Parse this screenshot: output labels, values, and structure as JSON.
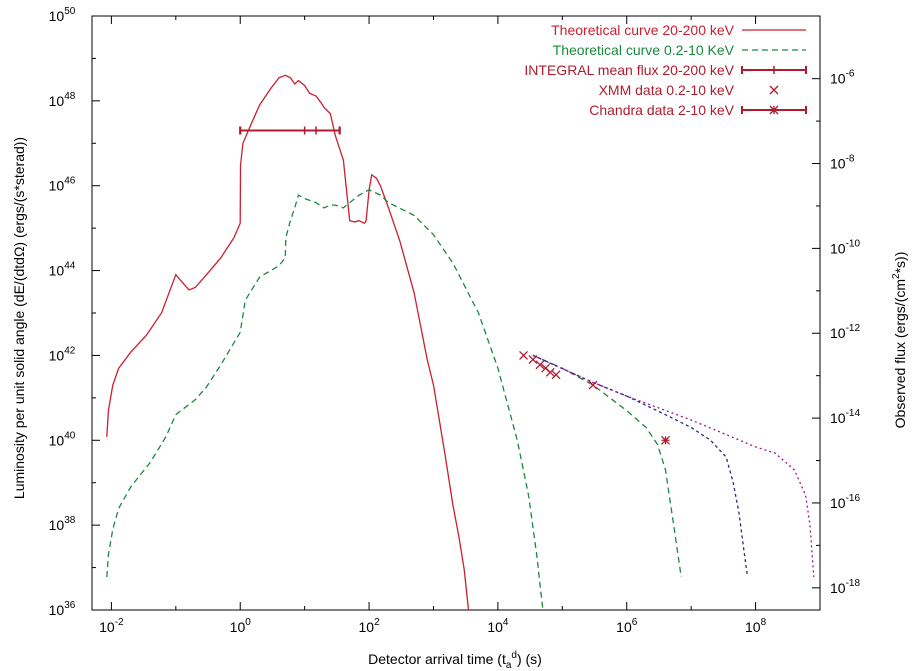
{
  "chart_data": {
    "type": "line",
    "x_axis": {
      "label": "Detector arrival time (t",
      "label_sub": "a",
      "label_sup": "d",
      "label_tail": ") (s)",
      "scale": "log",
      "range": [
        0.005,
        1000000000.0
      ],
      "ticks": [
        {
          "value": 0.01,
          "base": "10",
          "exp": "-2"
        },
        {
          "value": 1,
          "base": "10",
          "exp": "0"
        },
        {
          "value": 100,
          "base": "10",
          "exp": "2"
        },
        {
          "value": 10000,
          "base": "10",
          "exp": "4"
        },
        {
          "value": 1000000,
          "base": "10",
          "exp": "6"
        },
        {
          "value": 100000000,
          "base": "10",
          "exp": "8"
        }
      ]
    },
    "y_axis_left": {
      "label": "Luminosity per unit solid angle (dE/(dtdΩ) (ergs/(s*sterad))",
      "scale": "log",
      "range": [
        1e+36,
        1e+50
      ],
      "ticks": [
        {
          "value": 1e+36,
          "base": "10",
          "exp": "36"
        },
        {
          "value": 1e+38,
          "base": "10",
          "exp": "38"
        },
        {
          "value": 1e+40,
          "base": "10",
          "exp": "40"
        },
        {
          "value": 1e+42,
          "base": "10",
          "exp": "42"
        },
        {
          "value": 1e+44,
          "base": "10",
          "exp": "44"
        },
        {
          "value": 1e+46,
          "base": "10",
          "exp": "46"
        },
        {
          "value": 1e+48,
          "base": "10",
          "exp": "48"
        },
        {
          "value": 1e+50,
          "base": "10",
          "exp": "50"
        }
      ]
    },
    "y_axis_right": {
      "label_pre": "Observed flux (ergs/(cm",
      "label_sup": "2",
      "label_post": "*s))",
      "scale": "log",
      "range": [
        3e-19,
        3e-05
      ],
      "ticks": [
        {
          "value": 1e-18,
          "base": "10",
          "exp": "-18"
        },
        {
          "value": 1e-16,
          "base": "10",
          "exp": "-16"
        },
        {
          "value": 1e-14,
          "base": "10",
          "exp": "-14"
        },
        {
          "value": 1e-12,
          "base": "10",
          "exp": "-12"
        },
        {
          "value": 1e-10,
          "base": "10",
          "exp": "-10"
        },
        {
          "value": 1e-08,
          "base": "10",
          "exp": "-8"
        },
        {
          "value": 1e-06,
          "base": "10",
          "exp": "-6"
        }
      ]
    },
    "legend_position": "top-right",
    "series": [
      {
        "name": "Theoretical curve 20-200 keV",
        "kind": "line",
        "color": "#cc1f2f",
        "dash": "",
        "points": [
          [
            0.0085,
            1.2e+40
          ],
          [
            0.009,
            5e+40
          ],
          [
            0.0105,
            2e+41
          ],
          [
            0.013,
            5e+41
          ],
          [
            0.02,
            1.2e+42
          ],
          [
            0.035,
            3e+42
          ],
          [
            0.06,
            1e+43
          ],
          [
            0.1,
            8e+43
          ],
          [
            0.13,
            5e+43
          ],
          [
            0.16,
            3.5e+43
          ],
          [
            0.2,
            4e+43
          ],
          [
            0.3,
            8e+43
          ],
          [
            0.5,
            2e+44
          ],
          [
            0.8,
            6e+44
          ],
          [
            1.0,
            1.3e+45
          ],
          [
            1.01,
            3e+46
          ],
          [
            1.1,
            1e+47
          ],
          [
            1.5,
            3e+47
          ],
          [
            2,
            8e+47
          ],
          [
            3,
            2e+48
          ],
          [
            4,
            3.5e+48
          ],
          [
            5,
            4e+48
          ],
          [
            6,
            3.5e+48
          ],
          [
            7,
            2.5e+48
          ],
          [
            8,
            3e+48
          ],
          [
            10,
            2.3e+48
          ],
          [
            12,
            1.5e+48
          ],
          [
            15,
            1.3e+48
          ],
          [
            18,
            9e+47
          ],
          [
            20,
            7e+47
          ],
          [
            25,
            5e+47
          ],
          [
            30,
            1.5e+47
          ],
          [
            40,
            4e+46
          ],
          [
            50,
            1.5e+45
          ],
          [
            60,
            1.4e+45
          ],
          [
            70,
            1.5e+45
          ],
          [
            85,
            1.3e+45
          ],
          [
            90,
            1.5e+45
          ],
          [
            100,
            8e+45
          ],
          [
            110,
            1.8e+46
          ],
          [
            130,
            1.5e+46
          ],
          [
            150,
            1e+46
          ],
          [
            200,
            3e+45
          ],
          [
            300,
            5e+44
          ],
          [
            500,
            3e+43
          ],
          [
            800,
            8e+41
          ],
          [
            1000,
            2e+41
          ],
          [
            1500,
            5e+39
          ],
          [
            2000,
            3e+38
          ],
          [
            2500,
            5e+37
          ],
          [
            3000,
            9e+36
          ],
          [
            3500,
            1e+36
          ]
        ]
      },
      {
        "name": "Theoretical curve 0.2-10 KeV",
        "kind": "line",
        "color": "#1a8a3c",
        "dash": "6,4",
        "points": [
          [
            0.0085,
            6e+36
          ],
          [
            0.009,
            2e+37
          ],
          [
            0.0105,
            8e+37
          ],
          [
            0.013,
            2.5e+38
          ],
          [
            0.02,
            8e+38
          ],
          [
            0.04,
            3e+39
          ],
          [
            0.07,
            1.2e+40
          ],
          [
            0.1,
            4e+40
          ],
          [
            0.13,
            5.5e+40
          ],
          [
            0.2,
            9e+40
          ],
          [
            0.3,
            1.8e+41
          ],
          [
            0.5,
            6e+41
          ],
          [
            0.8,
            2e+42
          ],
          [
            1.0,
            3.5e+42
          ],
          [
            1.2,
            2e+43
          ],
          [
            2,
            7e+43
          ],
          [
            4,
            1.3e+44
          ],
          [
            5,
            2e+44
          ],
          [
            5.1,
            6e+44
          ],
          [
            6,
            1.5e+45
          ],
          [
            7,
            3e+45
          ],
          [
            8,
            6e+45
          ],
          [
            10,
            5e+45
          ],
          [
            15,
            4e+45
          ],
          [
            20,
            3e+45
          ],
          [
            25,
            3.5e+45
          ],
          [
            30,
            3.5e+45
          ],
          [
            40,
            3e+45
          ],
          [
            50,
            4e+45
          ],
          [
            70,
            6e+45
          ],
          [
            100,
            8e+45
          ],
          [
            150,
            6e+45
          ],
          [
            200,
            4e+45
          ],
          [
            500,
            2e+45
          ],
          [
            1000,
            7e+44
          ],
          [
            2000,
            1.5e+44
          ],
          [
            5000,
            1e+43
          ],
          [
            10000,
            5e+41
          ],
          [
            20000,
            1e+40
          ],
          [
            30000,
            5e+38
          ],
          [
            40000,
            2e+37
          ],
          [
            50000,
            1e+36
          ]
        ]
      },
      {
        "name": "",
        "kind": "line",
        "color": "#1a8a3c",
        "dash": "6,4",
        "points": [
          [
            35000,
            1e+42
          ],
          [
            100000,
            5e+41
          ],
          [
            300000,
            2e+41
          ],
          [
            1000000,
            5e+40
          ],
          [
            2000000,
            2e+40
          ],
          [
            3000000,
            8e+39
          ],
          [
            4000000,
            2e+39
          ],
          [
            5000000,
            2e+38
          ],
          [
            6000000,
            3e+37
          ],
          [
            7000000,
            6e+36
          ]
        ]
      },
      {
        "name": "",
        "kind": "line",
        "color": "#1f2a8a",
        "dash": "3,3",
        "points": [
          [
            35000,
            1e+42
          ],
          [
            300000,
            2.3e+41
          ],
          [
            1000000,
            1.1e+41
          ],
          [
            4000000,
            4e+40
          ],
          [
            10000000,
            2e+40
          ],
          [
            20000000,
            1e+40
          ],
          [
            35000000,
            4e+39
          ],
          [
            45000000,
            1e+39
          ],
          [
            55000000,
            2e+38
          ],
          [
            65000000,
            3e+37
          ],
          [
            75000000,
            6e+36
          ]
        ]
      },
      {
        "name": "",
        "kind": "line",
        "color": "#a0148a",
        "dash": "2,3",
        "points": [
          [
            35000,
            1e+42
          ],
          [
            300000,
            2.3e+41
          ],
          [
            1000000,
            1.1e+41
          ],
          [
            10000000,
            3e+40
          ],
          [
            30000000,
            1.5e+40
          ],
          [
            100000000,
            7e+39
          ],
          [
            200000000,
            5e+39
          ],
          [
            400000000,
            2e+39
          ],
          [
            600000000,
            5e+38
          ],
          [
            700000000,
            1e+38
          ],
          [
            800000000,
            6e+36
          ]
        ]
      },
      {
        "name": "INTEGRAL mean flux 20-200 keV",
        "kind": "xerrorbar",
        "color": "#b01c2e",
        "points": [
          {
            "x": 10,
            "y": 2e+47,
            "xlo": 1,
            "xhi": 35
          },
          {
            "x": 15,
            "y": 2e+47,
            "xlo": 1,
            "xhi": 35
          }
        ]
      },
      {
        "name": "XMM data 0.2-10 keV",
        "kind": "marker",
        "marker": "x",
        "color": "#b01c2e",
        "points": [
          [
            25000,
            1e+42
          ],
          [
            35000,
            8e+41
          ],
          [
            45000,
            6e+41
          ],
          [
            55000,
            5e+41
          ],
          [
            65000,
            4e+41
          ],
          [
            80000,
            3.5e+41
          ],
          [
            300000,
            2e+41
          ]
        ]
      },
      {
        "name": "Chandra data 2-10 keV",
        "kind": "marker",
        "marker": "star",
        "color": "#b01c2e",
        "points": [
          [
            4000000,
            1e+40
          ]
        ]
      }
    ]
  }
}
